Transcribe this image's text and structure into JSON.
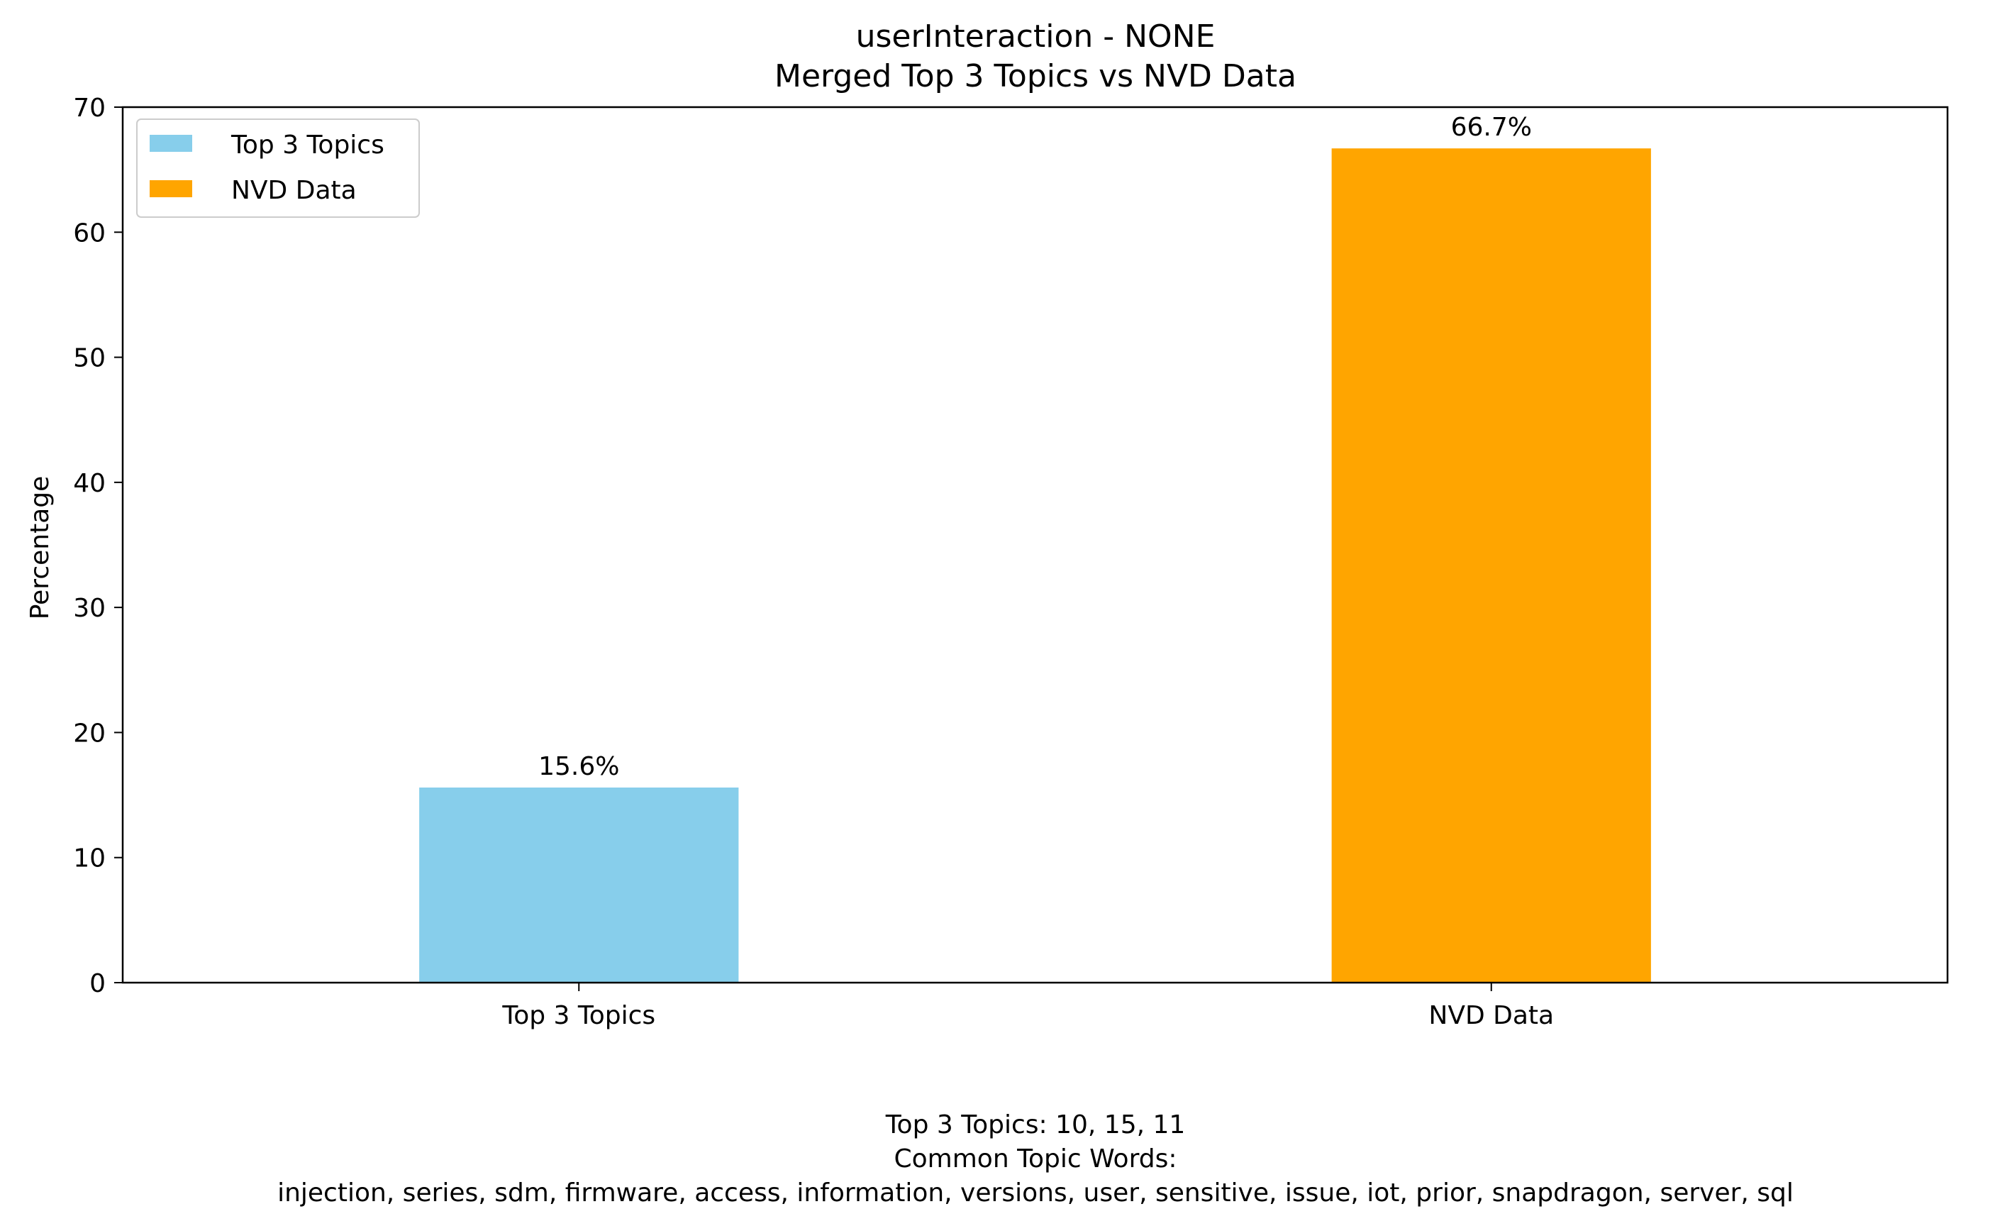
{
  "chart_data": {
    "type": "bar",
    "title": "userInteraction - NONE",
    "subtitle": "Merged Top 3 Topics vs NVD Data",
    "xlabel": "",
    "ylabel": "Percentage",
    "categories": [
      "Top 3 Topics",
      "NVD Data"
    ],
    "values": [
      15.6,
      66.7
    ],
    "data_labels": [
      "15.6%",
      "66.7%"
    ],
    "colors": [
      "#87ceeb",
      "#ffa500"
    ],
    "ylim": [
      0,
      70
    ],
    "yticks": [
      0,
      10,
      20,
      30,
      40,
      50,
      60,
      70
    ],
    "grid": false,
    "legend": {
      "placement": "top-left",
      "entries": [
        {
          "label": "Top 3 Topics",
          "color": "#87ceeb"
        },
        {
          "label": "NVD Data",
          "color": "#ffa500"
        }
      ]
    }
  },
  "footer": {
    "topics_line": "Top 3 Topics: 10, 15, 11",
    "words_heading": "Common Topic Words:",
    "words_line": "injection,  series,  sdm,  firmware,  access,  information,  versions,  user,  sensitive,  issue,  iot,  prior,  snapdragon,  server,  sql"
  }
}
